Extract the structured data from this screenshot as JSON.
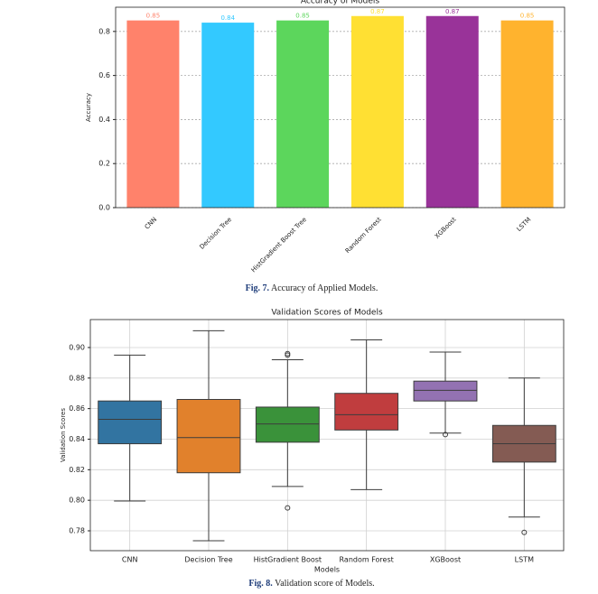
{
  "chart_data": [
    {
      "type": "bar",
      "title": "Accuracy of Models",
      "y_label": "Accuracy",
      "categories": [
        "CNN",
        "Decision Tree",
        "HistGradient Boost Tree",
        "Random Forest",
        "XGBoost",
        "LSTM"
      ],
      "values": [
        0.85,
        0.84,
        0.85,
        0.87,
        0.87,
        0.85
      ],
      "colors": [
        "#ff826b",
        "#33c9ff",
        "#5cd65c",
        "#ffe033",
        "#993399",
        "#ffb32e"
      ],
      "ylim": [
        0,
        0.91
      ],
      "yticks": [
        {
          "value": 0,
          "label": "0.0"
        },
        0.2,
        0.4,
        0.6,
        0.8
      ],
      "grid": "y"
    },
    {
      "type": "box",
      "title": "Validation Scores of Models",
      "x_label": "Models",
      "y_label": "Validation Scores",
      "categories": [
        "CNN",
        "Decision Tree",
        "HistGradient Boost",
        "Random Forest",
        "XGBoost",
        "LSTM"
      ],
      "colors": [
        "#3274a1",
        "#e1812c",
        "#3a923a",
        "#c03d3e",
        "#9372b2",
        "#845b53"
      ],
      "boxes": [
        {
          "min": 0.7995,
          "q1": 0.837,
          "median": 0.853,
          "q3": 0.865,
          "max": 0.895,
          "outliers": []
        },
        {
          "min": 0.7735,
          "q1": 0.818,
          "median": 0.841,
          "q3": 0.866,
          "max": 0.911,
          "outliers": []
        },
        {
          "min": 0.809,
          "q1": 0.838,
          "median": 0.85,
          "q3": 0.861,
          "max": 0.892,
          "outliers": [
            0.896,
            0.895,
            0.795
          ]
        },
        {
          "min": 0.807,
          "q1": 0.846,
          "median": 0.856,
          "q3": 0.87,
          "max": 0.905,
          "outliers": []
        },
        {
          "min": 0.844,
          "q1": 0.865,
          "median": 0.872,
          "q3": 0.878,
          "max": 0.897,
          "outliers": [
            0.843
          ]
        },
        {
          "min": 0.789,
          "q1": 0.825,
          "median": 0.837,
          "q3": 0.849,
          "max": 0.88,
          "outliers": [
            0.779
          ]
        }
      ],
      "ylim": [
        0.767,
        0.9183
      ],
      "yticks": [
        0.78,
        {
          "value": 0.8,
          "label": "0.80"
        },
        0.82,
        0.84,
        0.86,
        0.88,
        {
          "value": 0.9,
          "label": "0.90"
        }
      ],
      "grid": "both"
    }
  ],
  "captions": [
    {
      "label": "Fig. 7.",
      "text": "Accuracy of Applied Models."
    },
    {
      "label": "Fig. 8.",
      "text": "Validation score of Models."
    }
  ]
}
